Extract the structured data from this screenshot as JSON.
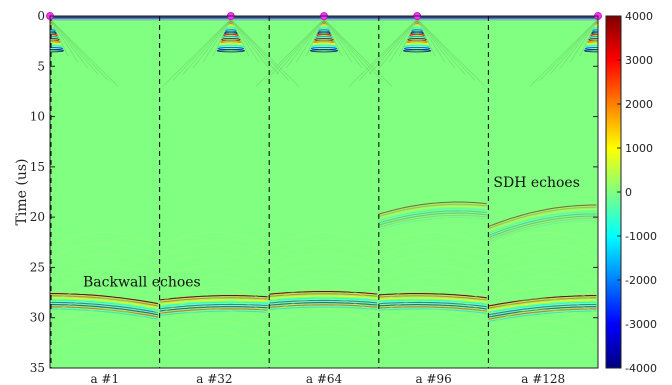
{
  "chart_data": {
    "type": "heatmap",
    "ylabel": "Time (us)",
    "y_range": [
      0,
      35
    ],
    "y_ticks": [
      0,
      5,
      10,
      15,
      20,
      25,
      30,
      35
    ],
    "panels": [
      "a #1",
      "a #32",
      "a #64",
      "a #96",
      "a #128"
    ],
    "transmit_element_position": [
      0,
      0.33,
      0.5,
      0.67,
      1.0
    ],
    "source_time_us": 0,
    "colorbar": {
      "min": -4000,
      "max": 4000,
      "ticks": [
        4000,
        3000,
        2000,
        1000,
        0,
        -1000,
        -2000,
        -3000,
        -4000
      ],
      "colormap": "jet"
    },
    "backwall_arrival_us": [
      27.6,
      27.8,
      27.4,
      27.6,
      27.8
    ],
    "sdh_echo_us": [
      null,
      null,
      null,
      18.5,
      18.8
    ],
    "annotations": [
      {
        "text": "Backwall echoes",
        "panel": 0,
        "time_us": 26.9
      },
      {
        "text": "SDH echoes",
        "panel": 4,
        "time_us": 17.0
      }
    ],
    "grid": false,
    "legend": "none"
  }
}
